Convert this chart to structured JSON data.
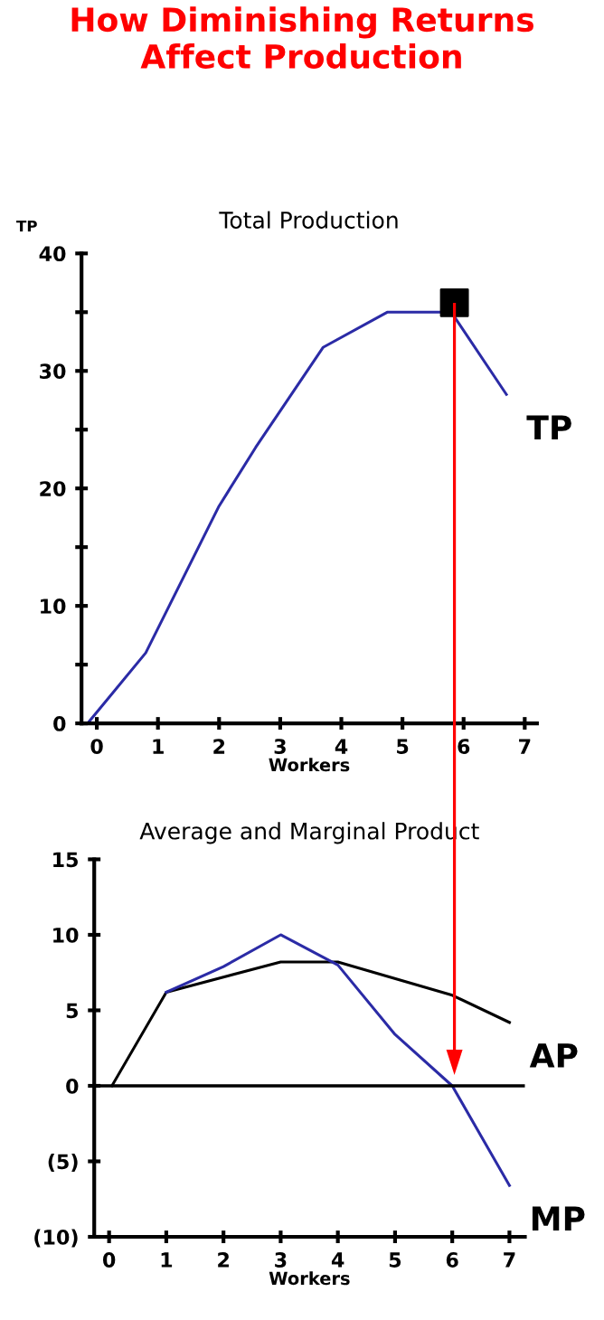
{
  "chart_data": [
    {
      "type": "line",
      "title": "How Diminishing Returns\nAffect Production",
      "subtitle": "Total Production",
      "xlabel": "Workers",
      "ylabel": "TP",
      "xlim": [
        -0.25,
        7.2
      ],
      "xticks": [
        0,
        1,
        2,
        3,
        4,
        5,
        6,
        7
      ],
      "ylim": [
        0,
        40
      ],
      "yticks": [
        0,
        {
          "value": 5,
          "label": null
        },
        10,
        {
          "value": 15,
          "label": null
        },
        20,
        {
          "value": 25,
          "label": null
        },
        30,
        {
          "value": 35,
          "label": null
        },
        40
      ],
      "grid": false,
      "legend": false,
      "series": [
        {
          "name": "TP",
          "color": "#2b2ba6",
          "x": [
            -0.15,
            0.8,
            2.0,
            2.6,
            3.7,
            4.75,
            5.8,
            6.7
          ],
          "values": [
            0,
            6,
            18.5,
            23.5,
            32,
            35,
            35,
            28
          ]
        },
        {
          "type": "scatter",
          "marker": "square",
          "color": "#000000",
          "x": [
            5.85
          ],
          "values": [
            35.8
          ]
        }
      ]
    },
    {
      "type": "line",
      "subtitle": "Average and Marginal Product",
      "xlabel": "Workers",
      "xlim": [
        -0.26,
        7.27
      ],
      "xticks": [
        0,
        1,
        2,
        3,
        4,
        5,
        6,
        7
      ],
      "ylim": [
        -10,
        15
      ],
      "yticks": [
        {
          "value": -10,
          "label": "(10)"
        },
        {
          "value": -5,
          "label": "(5)"
        },
        0,
        5,
        10,
        15
      ],
      "grid": false,
      "legend": false,
      "ref_lines": [
        {
          "axis": "y",
          "value": 0,
          "color": "#000000"
        }
      ],
      "series": [
        {
          "name": "AP",
          "color": "#000000",
          "x": [
            0.05,
            1,
            3,
            4,
            6,
            7
          ],
          "values": [
            0,
            6.2,
            8.2,
            8.2,
            6,
            4.2
          ]
        },
        {
          "name": "MP",
          "color": "#2b2ba6",
          "x": [
            1,
            2,
            3,
            4,
            5,
            6,
            7
          ],
          "values": [
            6.2,
            7.9,
            10,
            8,
            3.4,
            0,
            -6.6
          ]
        }
      ]
    }
  ]
}
